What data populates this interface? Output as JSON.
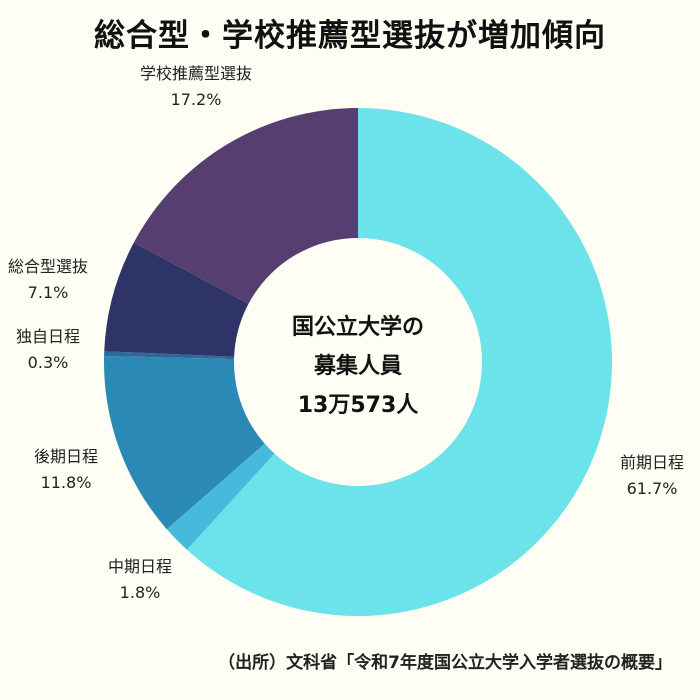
{
  "title": "総合型・学校推薦型選抜が増加傾向",
  "center_label": [
    "国公立大学の",
    "募集人員",
    "13万573人"
  ],
  "source": "（出所）文科省「令和7年度国公立大学入学者選抜の概要」",
  "chart_data": {
    "type": "pie",
    "donut": true,
    "title": "総合型・学校推薦型選抜が増加傾向",
    "categories": [
      "前期日程",
      "中期日程",
      "後期日程",
      "独自日程",
      "総合型選抜",
      "学校推薦型選抜"
    ],
    "values": [
      61.7,
      1.8,
      11.8,
      0.3,
      7.1,
      17.2
    ],
    "value_labels": [
      "61.7%",
      "1.8%",
      "11.8%",
      "0.3%",
      "7.1%",
      "17.2%"
    ],
    "colors": [
      "#6ce2ea",
      "#47b9dc",
      "#2b89b5",
      "#2d6a9a",
      "#2e3468",
      "#563f70"
    ],
    "start_angle_deg": 0,
    "direction": "clockwise"
  }
}
